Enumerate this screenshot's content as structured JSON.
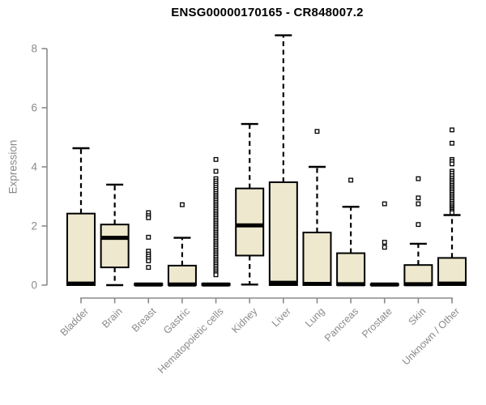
{
  "title": "ENSG00000170165 - CR848007.2",
  "ylabel": "Expression",
  "colors": {
    "background": "#ffffff",
    "box_fill": "#ede8ce",
    "box_stroke": "#000000",
    "median": "#000000",
    "whisker": "#000000",
    "outlier_fill": "#ffffff",
    "axis": "#8a8a8a",
    "tick_text": "#8a8a8a",
    "title_text": "#000000"
  },
  "chart_data": {
    "type": "boxplot",
    "title": "ENSG00000170165 - CR848007.2",
    "xlabel": "",
    "ylabel": "Expression",
    "ylim": [
      0,
      8.6
    ],
    "yticks": [
      0,
      2,
      4,
      6,
      8
    ],
    "grid": false,
    "legend": false,
    "categories": [
      "Bladder",
      "Brain",
      "Breast",
      "Gastric",
      "Hematopoietic cells",
      "Kidney",
      "Liver",
      "Lung",
      "Pancreas",
      "Prostate",
      "Skin",
      "Unknown / Other"
    ],
    "series": [
      {
        "name": "Bladder",
        "whisker_low": null,
        "q1": 0,
        "median": 0.05,
        "q3": 2.42,
        "whisker_high": 4.63,
        "outliers": []
      },
      {
        "name": "Brain",
        "whisker_low": 0.0,
        "q1": 0.6,
        "median": 1.6,
        "q3": 2.05,
        "whisker_high": 3.4,
        "outliers": []
      },
      {
        "name": "Breast",
        "whisker_low": null,
        "q1": 0,
        "median": 0.02,
        "q3": 0.05,
        "whisker_high": null,
        "outliers": [
          2.45,
          2.35,
          2.28,
          1.62,
          1.15,
          1.05,
          0.98,
          0.9,
          0.82,
          0.6
        ]
      },
      {
        "name": "Gastric",
        "whisker_low": null,
        "q1": 0,
        "median": 0.02,
        "q3": 0.66,
        "whisker_high": 1.6,
        "outliers": [
          2.72
        ]
      },
      {
        "name": "Hematopoietic cells",
        "whisker_low": null,
        "q1": 0,
        "median": 0.02,
        "q3": 0.05,
        "whisker_high": null,
        "outliers": [
          4.25,
          3.85,
          3.6,
          3.52,
          3.45,
          3.38,
          3.31,
          3.24,
          3.17,
          3.1,
          3.04,
          2.98,
          2.92,
          2.86,
          2.8,
          2.74,
          2.68,
          2.62,
          2.56,
          2.5,
          2.44,
          2.38,
          2.32,
          2.26,
          2.2,
          2.14,
          2.08,
          2.02,
          1.96,
          1.9,
          1.84,
          1.78,
          1.72,
          1.66,
          1.6,
          1.54,
          1.48,
          1.42,
          1.36,
          1.3,
          1.24,
          1.18,
          1.12,
          1.06,
          1.0,
          0.94,
          0.88,
          0.82,
          0.76,
          0.7,
          0.64,
          0.58,
          0.52,
          0.46,
          0.4,
          0.35
        ]
      },
      {
        "name": "Kidney",
        "whisker_low": 0.02,
        "q1": 1.0,
        "median": 2.02,
        "q3": 3.27,
        "whisker_high": 5.45,
        "outliers": []
      },
      {
        "name": "Liver",
        "whisker_low": null,
        "q1": 0,
        "median": 0.08,
        "q3": 3.48,
        "whisker_high": 8.45,
        "outliers": []
      },
      {
        "name": "Lung",
        "whisker_low": null,
        "q1": 0,
        "median": 0.04,
        "q3": 1.78,
        "whisker_high": 4.0,
        "outliers": [
          5.2
        ]
      },
      {
        "name": "Pancreas",
        "whisker_low": null,
        "q1": 0,
        "median": 0.03,
        "q3": 1.08,
        "whisker_high": 2.65,
        "outliers": [
          3.55
        ]
      },
      {
        "name": "Prostate",
        "whisker_low": null,
        "q1": 0,
        "median": 0.02,
        "q3": 0.04,
        "whisker_high": null,
        "outliers": [
          2.75,
          1.45,
          1.28
        ]
      },
      {
        "name": "Skin",
        "whisker_low": null,
        "q1": 0,
        "median": 0.03,
        "q3": 0.68,
        "whisker_high": 1.4,
        "outliers": [
          3.6,
          2.95,
          2.75,
          2.05
        ]
      },
      {
        "name": "Unknown / Other",
        "whisker_low": null,
        "q1": 0,
        "median": 0.05,
        "q3": 0.92,
        "whisker_high": 2.37,
        "outliers": [
          5.25,
          4.8,
          4.25,
          4.18,
          4.1,
          3.85,
          3.78,
          3.7,
          3.62,
          3.55,
          3.49,
          3.43,
          3.37,
          3.31,
          3.25,
          3.19,
          3.13,
          3.07,
          3.01,
          2.95,
          2.89,
          2.83,
          2.77,
          2.71,
          2.65,
          2.6,
          2.55,
          2.5,
          2.45
        ]
      }
    ]
  }
}
